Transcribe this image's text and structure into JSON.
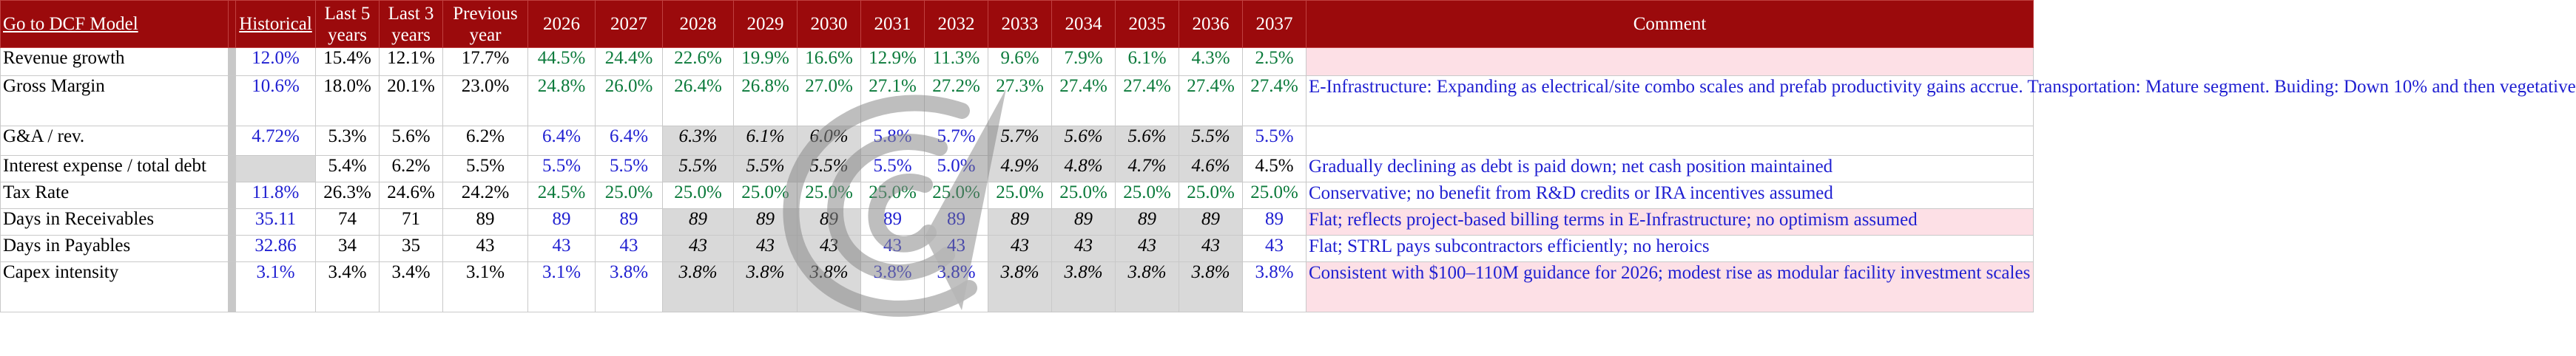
{
  "header": {
    "link_label": "Go to DCF Model",
    "historical_label": "Historical",
    "last5_label": "Last 5 years",
    "last3_label": "Last 3 years",
    "prev_label": "Previous year",
    "years": [
      "2026",
      "2027",
      "2028",
      "2029",
      "2030",
      "2031",
      "2032",
      "2033",
      "2034",
      "2035",
      "2036",
      "2037"
    ],
    "comment_label": "Comment"
  },
  "rows": [
    {
      "label": "Revenue growth",
      "historical": "12.0%",
      "last5": "15.4%",
      "last3": "12.1%",
      "prev": "17.7%",
      "years": [
        "44.5%",
        "24.4%",
        "22.6%",
        "19.9%",
        "16.6%",
        "12.9%",
        "11.3%",
        "9.6%",
        "7.9%",
        "6.1%",
        "4.3%",
        "2.5%"
      ],
      "comment": ""
    },
    {
      "label": "Gross Margin",
      "historical": "10.6%",
      "last5": "18.0%",
      "last3": "20.1%",
      "prev": "23.0%",
      "years": [
        "24.8%",
        "26.0%",
        "26.4%",
        "26.8%",
        "27.0%",
        "27.1%",
        "27.2%",
        "27.3%",
        "27.4%",
        "27.4%",
        "27.4%",
        "27.4%"
      ],
      "comment": "E-Infrastructure: Expanding as electrical/site combo scales and prefab productivity gains accrue. Transportation: Mature segment. Buiding: Down 10% and then vegetative"
    },
    {
      "label": "G&A / rev.",
      "historical": "4.72%",
      "last5": "5.3%",
      "last3": "5.6%",
      "prev": "6.2%",
      "years": [
        "6.4%",
        "6.4%",
        "6.3%",
        "6.1%",
        "6.0%",
        "5.8%",
        "5.7%",
        "5.7%",
        "5.6%",
        "5.6%",
        "5.5%",
        "5.5%"
      ],
      "comment": ""
    },
    {
      "label": "Interest expense / total debt",
      "historical": "",
      "last5": "5.4%",
      "last3": "6.2%",
      "prev": "5.5%",
      "years": [
        "5.5%",
        "5.5%",
        "5.5%",
        "5.5%",
        "5.5%",
        "5.5%",
        "5.0%",
        "4.9%",
        "4.8%",
        "4.7%",
        "4.6%",
        "4.5%"
      ],
      "comment": "Gradually declining as debt is paid down; net cash position maintained"
    },
    {
      "label": "Tax Rate",
      "historical": "11.8%",
      "last5": "26.3%",
      "last3": "24.6%",
      "prev": "24.2%",
      "years": [
        "24.5%",
        "25.0%",
        "25.0%",
        "25.0%",
        "25.0%",
        "25.0%",
        "25.0%",
        "25.0%",
        "25.0%",
        "25.0%",
        "25.0%",
        "25.0%"
      ],
      "comment": "Conservative; no benefit from R&D credits or IRA incentives assumed"
    },
    {
      "label": "Days in Receivables",
      "historical": "35.11",
      "last5": "74",
      "last3": "71",
      "prev": "89",
      "years": [
        "89",
        "89",
        "89",
        "89",
        "89",
        "89",
        "89",
        "89",
        "89",
        "89",
        "89",
        "89"
      ],
      "comment": "Flat; reflects project-based billing terms in E-Infrastructure; no optimism assumed"
    },
    {
      "label": "Days in Payables",
      "historical": "32.86",
      "last5": "34",
      "last3": "35",
      "prev": "43",
      "years": [
        "43",
        "43",
        "43",
        "43",
        "43",
        "43",
        "43",
        "43",
        "43",
        "43",
        "43",
        "43"
      ],
      "comment": "Flat; STRL pays subcontractors efficiently; no heroics"
    },
    {
      "label": "Capex intensity",
      "historical": "3.1%",
      "last5": "3.4%",
      "last3": "3.4%",
      "prev": "3.1%",
      "years": [
        "3.1%",
        "3.8%",
        "3.8%",
        "3.8%",
        "3.8%",
        "3.8%",
        "3.8%",
        "3.8%",
        "3.8%",
        "3.8%",
        "3.8%",
        "3.8%"
      ],
      "comment": "Consistent with $100–110M guidance for 2026; modest rise as modular facility investment scales"
    }
  ],
  "colors": {
    "header_bg": "#9b0a0c",
    "input_blue": "#1f1fd1",
    "forecast_green": "#0b7a3b",
    "gray_cell": "#d9d9d9",
    "comment_pink": "#fde0e6"
  },
  "watermark_icon": "swirl-logo-icon"
}
